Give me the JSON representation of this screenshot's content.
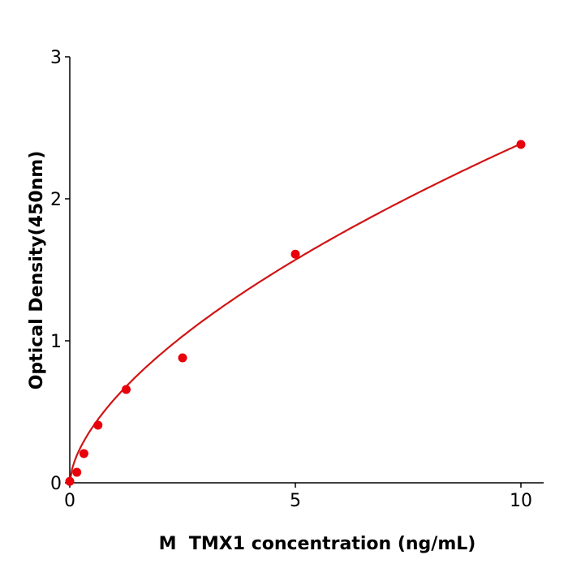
{
  "chart_data": {
    "type": "scatter",
    "xlabel": "M  TMX1 concentration (ng/mL)",
    "ylabel": "Optical Density(450nm)",
    "xlim": [
      0,
      10.5
    ],
    "ylim": [
      0,
      3
    ],
    "xticks": [
      "0",
      "5",
      "10"
    ],
    "yticks": [
      "0",
      "1",
      "2",
      "3"
    ],
    "grid": false,
    "point_color": "#e8000b",
    "curve_color": "#d11414",
    "series": [
      {
        "x": [
          0,
          0.156,
          0.3125,
          0.625,
          1.25,
          2.5,
          5,
          10
        ],
        "y": [
          0.01,
          0.074,
          0.206,
          0.406,
          0.657,
          0.88,
          1.61,
          2.383
        ]
      }
    ],
    "fit": {
      "type": "power",
      "a": 0.593,
      "b": 0.605
    }
  }
}
